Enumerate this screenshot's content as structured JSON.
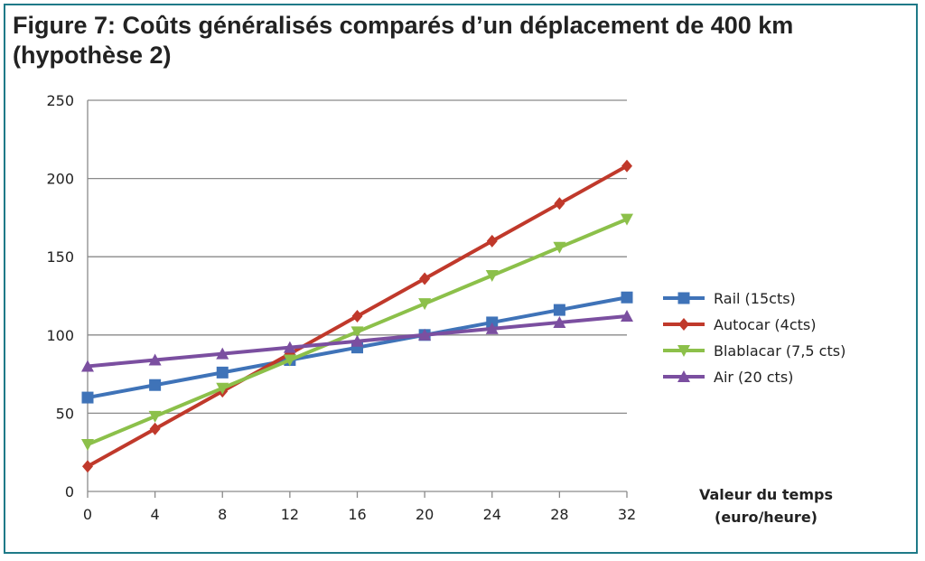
{
  "chart_data": {
    "type": "line",
    "title": "Figure 7: Coûts généralisés comparés d’un déplacement de 400 km (hypothèse 2)",
    "xlabel_line1": "Valeur du temps",
    "xlabel_line2": "(euro/heure)",
    "ylabel": "",
    "x": [
      0,
      4,
      8,
      12,
      16,
      20,
      24,
      28,
      32
    ],
    "xlim": [
      0,
      32
    ],
    "ylim": [
      0,
      250
    ],
    "yticks": [
      0,
      50,
      100,
      150,
      200,
      250
    ],
    "grid": "horizontal",
    "legend_position": "right",
    "series": [
      {
        "name": "Rail (15cts)",
        "color": "#3f73b8",
        "marker": "square",
        "values": [
          60,
          68,
          76,
          84,
          92,
          100,
          108,
          116,
          124
        ]
      },
      {
        "name": "Autocar (4cts)",
        "color": "#c0392b",
        "marker": "diamond",
        "values": [
          16,
          40,
          64,
          88,
          112,
          136,
          160,
          184,
          208
        ]
      },
      {
        "name": "Blablacar (7,5 cts)",
        "color": "#8cc04a",
        "marker": "triangle-down",
        "values": [
          30,
          48,
          66,
          84,
          102,
          120,
          138,
          156,
          174
        ]
      },
      {
        "name": "Air (20 cts)",
        "color": "#7b4fa0",
        "marker": "triangle-up",
        "values": [
          80,
          84,
          88,
          92,
          96,
          100,
          104,
          108,
          112
        ]
      }
    ]
  }
}
